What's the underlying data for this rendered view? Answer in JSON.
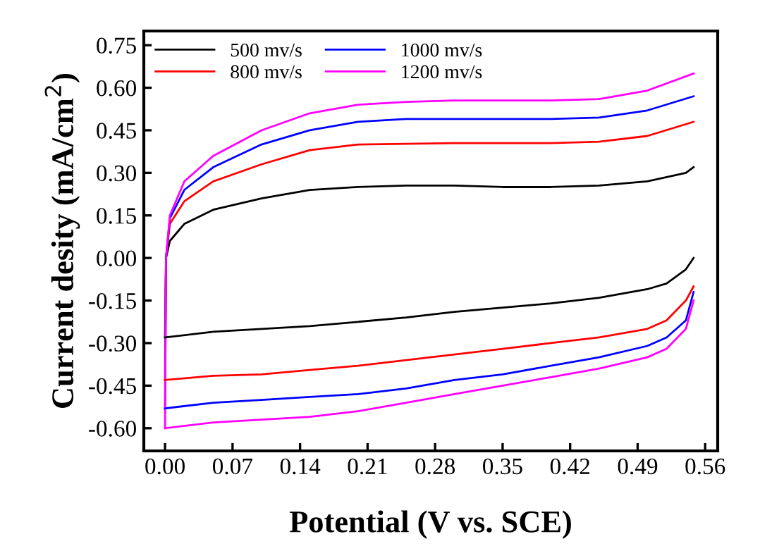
{
  "chart_data": {
    "type": "line",
    "xlabel": "Potential (V vs. SCE)",
    "ylabel": "Current desity (mA/cm$^{2}$)",
    "xlim": [
      -0.022,
      0.573
    ],
    "ylim": [
      -0.68,
      0.8
    ],
    "xticks": [
      {
        "value": 0,
        "label": "0.00"
      },
      {
        "value": 0.07,
        "label": "0.07"
      },
      {
        "value": 0.14,
        "label": "0.14"
      },
      {
        "value": 0.21,
        "label": "0.21"
      },
      {
        "value": 0.28,
        "label": "0.28"
      },
      {
        "value": 0.35,
        "label": "0.35"
      },
      {
        "value": 0.42,
        "label": "0.42"
      },
      {
        "value": 0.49,
        "label": "0.49"
      },
      {
        "value": 0.56,
        "label": "0.56"
      }
    ],
    "yticks": [
      {
        "value": -0.6,
        "label": "-0.60"
      },
      {
        "value": -0.45,
        "label": "-0.45"
      },
      {
        "value": -0.3,
        "label": "-0.30"
      },
      {
        "value": -0.15,
        "label": "-0.15"
      },
      {
        "value": 0,
        "label": "0.00"
      },
      {
        "value": 0.15,
        "label": "0.15"
      },
      {
        "value": 0.3,
        "label": "0.30"
      },
      {
        "value": 0.45,
        "label": "0.45"
      },
      {
        "value": 0.6,
        "label": "0.60"
      },
      {
        "value": 0.75,
        "label": "0.75"
      }
    ],
    "grid": false,
    "legend": "top left",
    "marker": "none",
    "line_style": "solid",
    "series": [
      {
        "name": "500 mv/s",
        "color": "#000000",
        "x": [
          0,
          0.001,
          0.005,
          0.02,
          0.05,
          0.1,
          0.15,
          0.2,
          0.25,
          0.3,
          0.35,
          0.4,
          0.45,
          0.5,
          0.54,
          0.548
        ],
        "values": [
          -0.28,
          0,
          0.06,
          0.12,
          0.17,
          0.21,
          0.24,
          0.25,
          0.255,
          0.255,
          0.25,
          0.25,
          0.255,
          0.27,
          0.3,
          0.32
        ]
      },
      {
        "name": "800 mv/s",
        "color": "#ff0000",
        "x": [
          0,
          0.001,
          0.005,
          0.02,
          0.05,
          0.1,
          0.15,
          0.2,
          0.3,
          0.4,
          0.45,
          0.5,
          0.548
        ],
        "values": [
          -0.43,
          0,
          0.12,
          0.2,
          0.27,
          0.33,
          0.38,
          0.4,
          0.405,
          0.405,
          0.41,
          0.43,
          0.48
        ]
      },
      {
        "name": "1000 mv/s",
        "color": "#0000ff",
        "x": [
          0,
          0.001,
          0.005,
          0.02,
          0.05,
          0.1,
          0.15,
          0.2,
          0.25,
          0.3,
          0.4,
          0.45,
          0.5,
          0.548
        ],
        "values": [
          -0.53,
          0,
          0.14,
          0.24,
          0.32,
          0.4,
          0.45,
          0.48,
          0.49,
          0.49,
          0.49,
          0.495,
          0.52,
          0.57
        ]
      },
      {
        "name": "1200 mv/s",
        "color": "#ff00ff",
        "x": [
          0,
          0.001,
          0.005,
          0.02,
          0.05,
          0.1,
          0.15,
          0.2,
          0.25,
          0.3,
          0.4,
          0.45,
          0.5,
          0.548
        ],
        "values": [
          -0.6,
          0,
          0.15,
          0.27,
          0.36,
          0.45,
          0.51,
          0.54,
          0.55,
          0.555,
          0.555,
          0.56,
          0.59,
          0.65
        ]
      },
      {
        "color": "#000000",
        "x": [
          0,
          0.05,
          0.1,
          0.15,
          0.2,
          0.25,
          0.3,
          0.35,
          0.4,
          0.45,
          0.5,
          0.52,
          0.54,
          0.548
        ],
        "values": [
          -0.28,
          -0.26,
          -0.25,
          -0.24,
          -0.225,
          -0.21,
          -0.19,
          -0.175,
          -0.16,
          -0.14,
          -0.11,
          -0.09,
          -0.04,
          0
        ]
      },
      {
        "color": "#ff0000",
        "x": [
          0,
          0.05,
          0.1,
          0.15,
          0.2,
          0.25,
          0.3,
          0.35,
          0.4,
          0.45,
          0.5,
          0.52,
          0.54,
          0.548
        ],
        "values": [
          -0.43,
          -0.415,
          -0.41,
          -0.395,
          -0.38,
          -0.36,
          -0.34,
          -0.32,
          -0.3,
          -0.28,
          -0.25,
          -0.22,
          -0.15,
          -0.1
        ]
      },
      {
        "color": "#0000ff",
        "x": [
          0,
          0.05,
          0.1,
          0.15,
          0.2,
          0.25,
          0.3,
          0.35,
          0.4,
          0.45,
          0.5,
          0.52,
          0.54,
          0.548
        ],
        "values": [
          -0.53,
          -0.51,
          -0.5,
          -0.49,
          -0.48,
          -0.46,
          -0.43,
          -0.41,
          -0.38,
          -0.35,
          -0.31,
          -0.28,
          -0.22,
          -0.12
        ]
      },
      {
        "color": "#ff00ff",
        "x": [
          0,
          0.05,
          0.1,
          0.15,
          0.2,
          0.25,
          0.3,
          0.35,
          0.4,
          0.45,
          0.5,
          0.52,
          0.54,
          0.548
        ],
        "values": [
          -0.6,
          -0.58,
          -0.57,
          -0.56,
          -0.54,
          -0.51,
          -0.48,
          -0.45,
          -0.42,
          -0.39,
          -0.35,
          -0.32,
          -0.25,
          -0.15
        ]
      }
    ]
  }
}
